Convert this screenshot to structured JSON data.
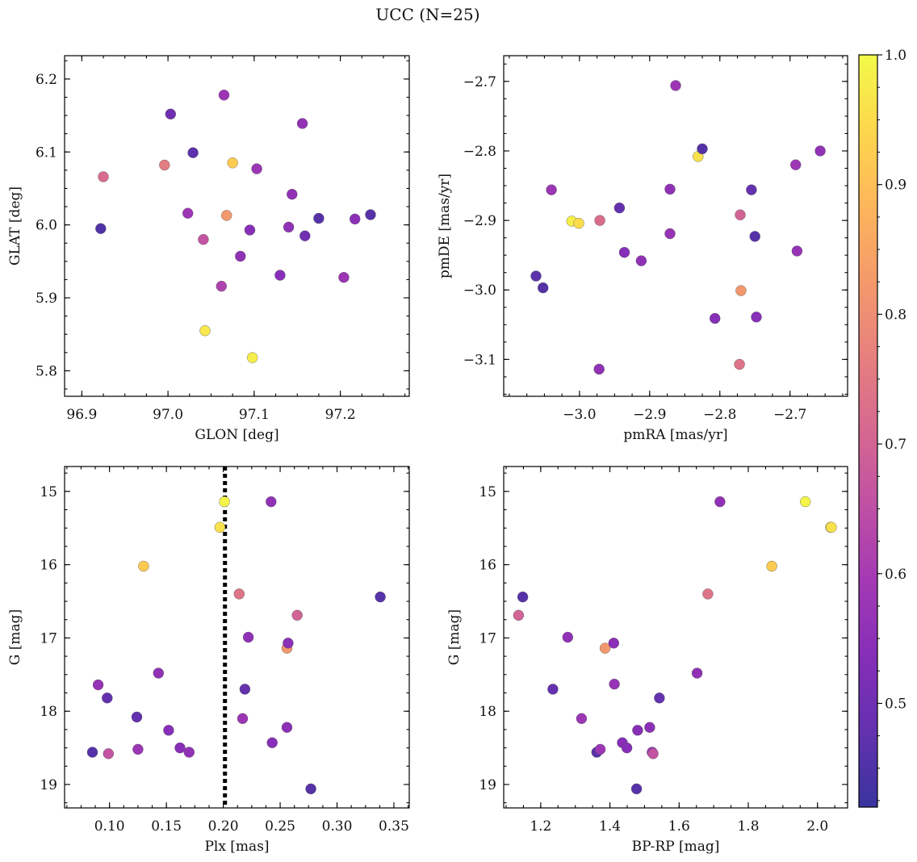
{
  "figure": {
    "title": "UCC (N=25)"
  },
  "colorbar": {
    "colormap": "plasma",
    "range": [
      0.42,
      1.0
    ],
    "ticks": [
      0.5,
      0.6,
      0.7,
      0.8,
      0.9,
      1.0
    ],
    "tick_labels": [
      "0.5",
      "0.6",
      "0.7",
      "0.8",
      "0.9",
      "1.0"
    ]
  },
  "chart_data": [
    {
      "id": "glon-glat",
      "type": "scatter",
      "xlabel": "GLON [deg]",
      "ylabel": "GLAT [deg]",
      "xlim": [
        96.88,
        97.28
      ],
      "ylim": [
        5.765,
        6.232
      ],
      "y_inverted": false,
      "xticks": [
        96.9,
        97.0,
        97.1,
        97.2
      ],
      "xtick_labels": [
        "96.9",
        "97.0",
        "97.1",
        "97.2"
      ],
      "yticks": [
        5.8,
        5.9,
        6.0,
        6.1,
        6.2
      ],
      "ytick_labels": [
        "5.8",
        "5.9",
        "6.0",
        "6.1",
        "6.2"
      ],
      "points": [
        {
          "x": 96.922,
          "y": 5.995,
          "c": 0.45
        },
        {
          "x": 96.925,
          "y": 6.066,
          "c": 0.72
        },
        {
          "x": 96.996,
          "y": 6.082,
          "c": 0.76
        },
        {
          "x": 97.003,
          "y": 6.152,
          "c": 0.5
        },
        {
          "x": 97.029,
          "y": 6.099,
          "c": 0.47
        },
        {
          "x": 97.023,
          "y": 6.016,
          "c": 0.58
        },
        {
          "x": 97.041,
          "y": 5.98,
          "c": 0.66
        },
        {
          "x": 97.043,
          "y": 5.855,
          "c": 0.97
        },
        {
          "x": 97.065,
          "y": 6.178,
          "c": 0.58
        },
        {
          "x": 97.068,
          "y": 6.013,
          "c": 0.82
        },
        {
          "x": 97.075,
          "y": 6.085,
          "c": 0.92
        },
        {
          "x": 97.062,
          "y": 5.916,
          "c": 0.62
        },
        {
          "x": 97.084,
          "y": 5.957,
          "c": 0.56
        },
        {
          "x": 97.095,
          "y": 5.993,
          "c": 0.54
        },
        {
          "x": 97.098,
          "y": 5.818,
          "c": 0.98
        },
        {
          "x": 97.103,
          "y": 6.077,
          "c": 0.58
        },
        {
          "x": 97.13,
          "y": 5.931,
          "c": 0.54
        },
        {
          "x": 97.14,
          "y": 5.997,
          "c": 0.56
        },
        {
          "x": 97.144,
          "y": 6.042,
          "c": 0.56
        },
        {
          "x": 97.156,
          "y": 6.139,
          "c": 0.56
        },
        {
          "x": 97.159,
          "y": 5.985,
          "c": 0.5
        },
        {
          "x": 97.175,
          "y": 6.009,
          "c": 0.46
        },
        {
          "x": 97.204,
          "y": 5.928,
          "c": 0.58
        },
        {
          "x": 97.217,
          "y": 6.008,
          "c": 0.55
        },
        {
          "x": 97.235,
          "y": 6.014,
          "c": 0.46
        }
      ]
    },
    {
      "id": "pmra-pmde",
      "type": "scatter",
      "xlabel": "pmRA [mas/yr]",
      "ylabel": "pmDE [mas/yr]",
      "xlim": [
        -3.108,
        -2.618
      ],
      "ylim": [
        -3.153,
        -2.663
      ],
      "y_inverted": false,
      "xticks": [
        -3.0,
        -2.9,
        -2.8,
        -2.7
      ],
      "xtick_labels": [
        "−3.0",
        "−2.9",
        "−2.8",
        "−2.7"
      ],
      "yticks": [
        -3.1,
        -3.0,
        -2.9,
        -2.8,
        -2.7
      ],
      "ytick_labels": [
        "−3.1",
        "−3.0",
        "−2.9",
        "−2.8",
        "−2.7"
      ],
      "points": [
        {
          "x": -3.062,
          "y": -2.98,
          "c": 0.47
        },
        {
          "x": -3.052,
          "y": -2.997,
          "c": 0.46
        },
        {
          "x": -3.04,
          "y": -2.856,
          "c": 0.58
        },
        {
          "x": -3.011,
          "y": -2.901,
          "c": 0.98
        },
        {
          "x": -3.001,
          "y": -2.904,
          "c": 0.95
        },
        {
          "x": -2.971,
          "y": -2.9,
          "c": 0.72
        },
        {
          "x": -2.972,
          "y": -3.114,
          "c": 0.56
        },
        {
          "x": -2.943,
          "y": -2.882,
          "c": 0.48
        },
        {
          "x": -2.936,
          "y": -2.946,
          "c": 0.54
        },
        {
          "x": -2.912,
          "y": -2.958,
          "c": 0.56
        },
        {
          "x": -2.871,
          "y": -2.919,
          "c": 0.57
        },
        {
          "x": -2.871,
          "y": -2.855,
          "c": 0.56
        },
        {
          "x": -2.863,
          "y": -2.706,
          "c": 0.58
        },
        {
          "x": -2.831,
          "y": -2.808,
          "c": 0.96
        },
        {
          "x": -2.825,
          "y": -2.797,
          "c": 0.46
        },
        {
          "x": -2.807,
          "y": -3.041,
          "c": 0.54
        },
        {
          "x": -2.771,
          "y": -2.892,
          "c": 0.7
        },
        {
          "x": -2.77,
          "y": -3.001,
          "c": 0.82
        },
        {
          "x": -2.772,
          "y": -3.107,
          "c": 0.74
        },
        {
          "x": -2.755,
          "y": -2.856,
          "c": 0.48
        },
        {
          "x": -2.75,
          "y": -2.923,
          "c": 0.46
        },
        {
          "x": -2.748,
          "y": -3.039,
          "c": 0.54
        },
        {
          "x": -2.692,
          "y": -2.82,
          "c": 0.58
        },
        {
          "x": -2.69,
          "y": -2.944,
          "c": 0.57
        },
        {
          "x": -2.657,
          "y": -2.8,
          "c": 0.56
        }
      ]
    },
    {
      "id": "plx-g",
      "type": "scatter",
      "xlabel": "Plx [mas]",
      "ylabel": "G [mag]",
      "xlim": [
        0.0605,
        0.3635
      ],
      "ylim": [
        19.32,
        14.66
      ],
      "y_inverted": true,
      "xticks": [
        0.1,
        0.15,
        0.2,
        0.25,
        0.3,
        0.35
      ],
      "xtick_labels": [
        "0.10",
        "0.15",
        "0.20",
        "0.25",
        "0.30",
        "0.35"
      ],
      "yticks": [
        15,
        16,
        17,
        18,
        19
      ],
      "ytick_labels": [
        "15",
        "16",
        "17",
        "18",
        "19"
      ],
      "vline": {
        "x": 0.2015,
        "style": "dotted",
        "color": "#000000"
      },
      "points": [
        {
          "x": 0.085,
          "y": 18.56,
          "c": 0.46
        },
        {
          "x": 0.09,
          "y": 17.64,
          "c": 0.57
        },
        {
          "x": 0.098,
          "y": 17.82,
          "c": 0.48
        },
        {
          "x": 0.099,
          "y": 18.58,
          "c": 0.66
        },
        {
          "x": 0.124,
          "y": 18.08,
          "c": 0.48
        },
        {
          "x": 0.125,
          "y": 18.52,
          "c": 0.58
        },
        {
          "x": 0.13,
          "y": 16.02,
          "c": 0.92
        },
        {
          "x": 0.143,
          "y": 17.48,
          "c": 0.56
        },
        {
          "x": 0.152,
          "y": 18.26,
          "c": 0.54
        },
        {
          "x": 0.162,
          "y": 18.5,
          "c": 0.54
        },
        {
          "x": 0.17,
          "y": 18.56,
          "c": 0.56
        },
        {
          "x": 0.197,
          "y": 15.49,
          "c": 0.96
        },
        {
          "x": 0.201,
          "y": 15.14,
          "c": 0.99
        },
        {
          "x": 0.214,
          "y": 16.4,
          "c": 0.74
        },
        {
          "x": 0.217,
          "y": 18.1,
          "c": 0.58
        },
        {
          "x": 0.219,
          "y": 17.7,
          "c": 0.48
        },
        {
          "x": 0.222,
          "y": 16.99,
          "c": 0.56
        },
        {
          "x": 0.242,
          "y": 15.14,
          "c": 0.56
        },
        {
          "x": 0.243,
          "y": 18.43,
          "c": 0.54
        },
        {
          "x": 0.256,
          "y": 17.14,
          "c": 0.82
        },
        {
          "x": 0.256,
          "y": 18.22,
          "c": 0.55
        },
        {
          "x": 0.257,
          "y": 17.07,
          "c": 0.55
        },
        {
          "x": 0.265,
          "y": 16.69,
          "c": 0.7
        },
        {
          "x": 0.277,
          "y": 19.06,
          "c": 0.46
        },
        {
          "x": 0.338,
          "y": 16.44,
          "c": 0.46
        }
      ]
    },
    {
      "id": "bprp-g",
      "type": "scatter",
      "xlabel": "BP-RP [mag]",
      "ylabel": "G [mag]",
      "xlim": [
        1.093,
        2.087
      ],
      "ylim": [
        19.32,
        14.66
      ],
      "y_inverted": true,
      "xticks": [
        1.2,
        1.4,
        1.6,
        1.8,
        2.0
      ],
      "xtick_labels": [
        "1.2",
        "1.4",
        "1.6",
        "1.8",
        "2.0"
      ],
      "yticks": [
        15,
        16,
        17,
        18,
        19
      ],
      "ytick_labels": [
        "15",
        "16",
        "17",
        "18",
        "19"
      ],
      "points": [
        {
          "x": 1.136,
          "y": 16.69,
          "c": 0.7
        },
        {
          "x": 1.148,
          "y": 16.44,
          "c": 0.46
        },
        {
          "x": 1.235,
          "y": 17.7,
          "c": 0.48
        },
        {
          "x": 1.278,
          "y": 16.99,
          "c": 0.56
        },
        {
          "x": 1.318,
          "y": 18.1,
          "c": 0.58
        },
        {
          "x": 1.362,
          "y": 18.56,
          "c": 0.46
        },
        {
          "x": 1.372,
          "y": 18.52,
          "c": 0.58
        },
        {
          "x": 1.386,
          "y": 17.14,
          "c": 0.82
        },
        {
          "x": 1.411,
          "y": 17.07,
          "c": 0.55
        },
        {
          "x": 1.413,
          "y": 17.63,
          "c": 0.57
        },
        {
          "x": 1.436,
          "y": 18.43,
          "c": 0.54
        },
        {
          "x": 1.449,
          "y": 18.5,
          "c": 0.54
        },
        {
          "x": 1.477,
          "y": 19.06,
          "c": 0.46
        },
        {
          "x": 1.48,
          "y": 18.26,
          "c": 0.54
        },
        {
          "x": 1.515,
          "y": 18.22,
          "c": 0.55
        },
        {
          "x": 1.522,
          "y": 18.56,
          "c": 0.56
        },
        {
          "x": 1.525,
          "y": 18.58,
          "c": 0.66
        },
        {
          "x": 1.543,
          "y": 17.82,
          "c": 0.48
        },
        {
          "x": 1.652,
          "y": 17.48,
          "c": 0.56
        },
        {
          "x": 1.683,
          "y": 16.4,
          "c": 0.74
        },
        {
          "x": 1.718,
          "y": 15.14,
          "c": 0.56
        },
        {
          "x": 1.868,
          "y": 16.02,
          "c": 0.92
        },
        {
          "x": 1.965,
          "y": 15.14,
          "c": 0.99
        },
        {
          "x": 2.038,
          "y": 15.49,
          "c": 0.96
        },
        {
          "x": 2.04,
          "y": 15.49,
          "c": 0.96
        }
      ]
    }
  ]
}
